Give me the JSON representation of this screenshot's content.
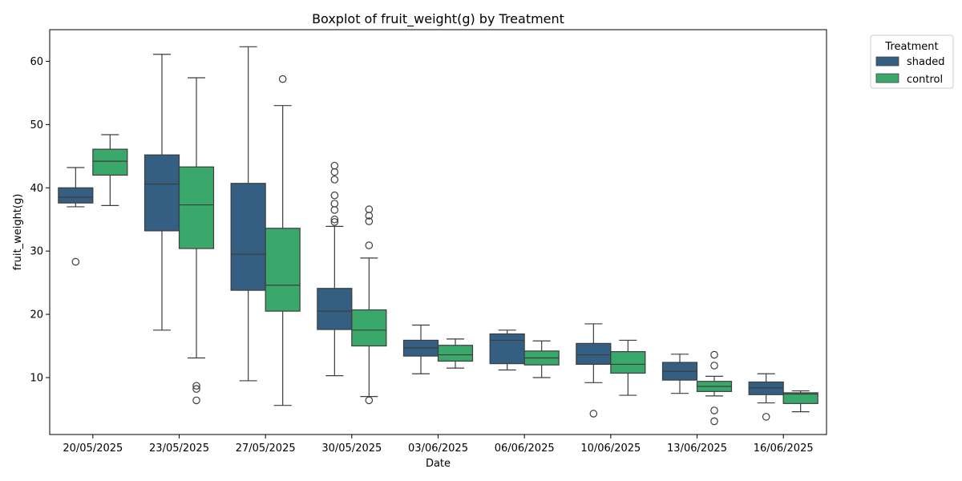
{
  "chart_data": {
    "type": "boxplot",
    "title": "Boxplot of fruit_weight(g) by Treatment",
    "xlabel": "Date",
    "ylabel": "fruit_weight(g)",
    "ylim": [
      1.0,
      65.0
    ],
    "yticks": [
      10,
      20,
      30,
      40,
      50,
      60
    ],
    "categories": [
      "20/05/2025",
      "23/05/2025",
      "27/05/2025",
      "30/05/2025",
      "03/06/2025",
      "06/06/2025",
      "10/06/2025",
      "13/06/2025",
      "16/06/2025"
    ],
    "legend": {
      "title": "Treatment",
      "position": "upper-right-outside"
    },
    "series": [
      {
        "name": "shaded",
        "color": "#355f82",
        "boxes": [
          {
            "whislo": 37.0,
            "q1": 37.6,
            "med": 38.5,
            "q3": 40.0,
            "whishi": 43.2,
            "fliers": [
              28.3
            ]
          },
          {
            "whislo": 17.5,
            "q1": 33.2,
            "med": 40.6,
            "q3": 45.2,
            "whishi": 61.1,
            "fliers": []
          },
          {
            "whislo": 9.5,
            "q1": 23.8,
            "med": 29.5,
            "q3": 40.7,
            "whishi": 62.3,
            "fliers": []
          },
          {
            "whislo": 10.3,
            "q1": 17.6,
            "med": 20.5,
            "q3": 24.1,
            "whishi": 33.9,
            "fliers": [
              34.6,
              35.0,
              36.5,
              37.5,
              38.8,
              41.3,
              42.5,
              43.5
            ]
          },
          {
            "whislo": 10.6,
            "q1": 13.4,
            "med": 14.7,
            "q3": 15.9,
            "whishi": 18.3,
            "fliers": []
          },
          {
            "whislo": 11.2,
            "q1": 12.2,
            "med": 15.9,
            "q3": 16.9,
            "whishi": 17.5,
            "fliers": []
          },
          {
            "whislo": 9.2,
            "q1": 12.1,
            "med": 13.6,
            "q3": 15.4,
            "whishi": 18.5,
            "fliers": [
              4.3
            ]
          },
          {
            "whislo": 7.5,
            "q1": 9.6,
            "med": 11.0,
            "q3": 12.4,
            "whishi": 13.7,
            "fliers": []
          },
          {
            "whislo": 6.0,
            "q1": 7.3,
            "med": 8.4,
            "q3": 9.3,
            "whishi": 10.6,
            "fliers": [
              3.8
            ]
          }
        ]
      },
      {
        "name": "control",
        "color": "#3aa86b",
        "boxes": [
          {
            "whislo": 37.2,
            "q1": 42.0,
            "med": 44.2,
            "q3": 46.1,
            "whishi": 48.4,
            "fliers": []
          },
          {
            "whislo": 13.1,
            "q1": 30.4,
            "med": 37.3,
            "q3": 43.3,
            "whishi": 57.4,
            "fliers": [
              8.7,
              8.2,
              6.4
            ]
          },
          {
            "whislo": 5.6,
            "q1": 20.5,
            "med": 24.6,
            "q3": 33.6,
            "whishi": 53.0,
            "fliers": [
              57.2
            ]
          },
          {
            "whislo": 7.0,
            "q1": 15.0,
            "med": 17.5,
            "q3": 20.7,
            "whishi": 28.9,
            "fliers": [
              6.4,
              30.9,
              34.7,
              35.6,
              36.6
            ]
          },
          {
            "whislo": 11.5,
            "q1": 12.6,
            "med": 13.6,
            "q3": 15.1,
            "whishi": 16.1,
            "fliers": []
          },
          {
            "whislo": 10.0,
            "q1": 12.0,
            "med": 13.1,
            "q3": 14.2,
            "whishi": 15.8,
            "fliers": []
          },
          {
            "whislo": 7.2,
            "q1": 10.7,
            "med": 12.1,
            "q3": 14.1,
            "whishi": 15.9,
            "fliers": []
          },
          {
            "whislo": 7.1,
            "q1": 7.8,
            "med": 8.6,
            "q3": 9.4,
            "whishi": 10.2,
            "fliers": [
              13.6,
              11.9,
              4.8,
              3.1
            ]
          },
          {
            "whislo": 4.6,
            "q1": 5.9,
            "med": 7.4,
            "q3": 7.6,
            "whishi": 7.9,
            "fliers": []
          }
        ]
      }
    ]
  }
}
